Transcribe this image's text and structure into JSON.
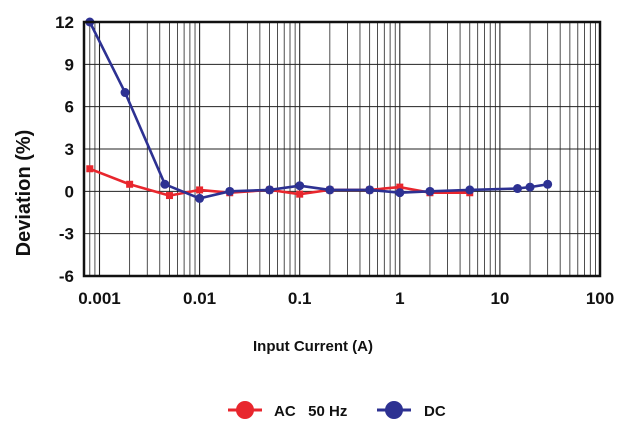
{
  "chart_data": {
    "type": "line",
    "title": "",
    "xlabel": "Input Current (A)",
    "ylabel": "Deviation (%)",
    "x_scale": "log",
    "xlim": [
      0.0007,
      100
    ],
    "ylim": [
      -6,
      12
    ],
    "x_ticks": [
      {
        "value": 0.001,
        "label": "0.001"
      },
      {
        "value": 0.01,
        "label": "0.01"
      },
      {
        "value": 0.1,
        "label": "0.1"
      },
      {
        "value": 1,
        "label": "1"
      },
      {
        "value": 10,
        "label": "10"
      },
      {
        "value": 100,
        "label": "100"
      }
    ],
    "y_ticks": [
      {
        "value": 12,
        "label": "12"
      },
      {
        "value": 9,
        "label": "9"
      },
      {
        "value": 6,
        "label": "6"
      },
      {
        "value": 3,
        "label": "3"
      },
      {
        "value": 0,
        "label": "0"
      },
      {
        "value": -3,
        "label": "-3"
      },
      {
        "value": -6,
        "label": "-6"
      }
    ],
    "grid": true,
    "legend_position": "bottom-center",
    "series": [
      {
        "name": "AC   50 Hz",
        "color": "#e8262d",
        "marker": "square",
        "points": [
          {
            "x": 0.0008,
            "y": 1.6
          },
          {
            "x": 0.002,
            "y": 0.5
          },
          {
            "x": 0.005,
            "y": -0.3
          },
          {
            "x": 0.01,
            "y": 0.1
          },
          {
            "x": 0.02,
            "y": -0.1
          },
          {
            "x": 0.05,
            "y": 0.1
          },
          {
            "x": 0.1,
            "y": -0.2
          },
          {
            "x": 0.2,
            "y": 0.1
          },
          {
            "x": 0.5,
            "y": 0.1
          },
          {
            "x": 1,
            "y": 0.3
          },
          {
            "x": 2,
            "y": -0.1
          },
          {
            "x": 5,
            "y": -0.1
          }
        ]
      },
      {
        "name": "DC",
        "color": "#2d3192",
        "marker": "circle",
        "points": [
          {
            "x": 0.0008,
            "y": 12
          },
          {
            "x": 0.0018,
            "y": 7
          },
          {
            "x": 0.0045,
            "y": 0.5
          },
          {
            "x": 0.01,
            "y": -0.5
          },
          {
            "x": 0.02,
            "y": 0.0
          },
          {
            "x": 0.05,
            "y": 0.1
          },
          {
            "x": 0.1,
            "y": 0.4
          },
          {
            "x": 0.2,
            "y": 0.1
          },
          {
            "x": 0.5,
            "y": 0.1
          },
          {
            "x": 1,
            "y": -0.1
          },
          {
            "x": 2,
            "y": 0.0
          },
          {
            "x": 5,
            "y": 0.1
          },
          {
            "x": 15,
            "y": 0.2
          },
          {
            "x": 20,
            "y": 0.3
          },
          {
            "x": 30,
            "y": 0.5
          }
        ]
      }
    ]
  }
}
